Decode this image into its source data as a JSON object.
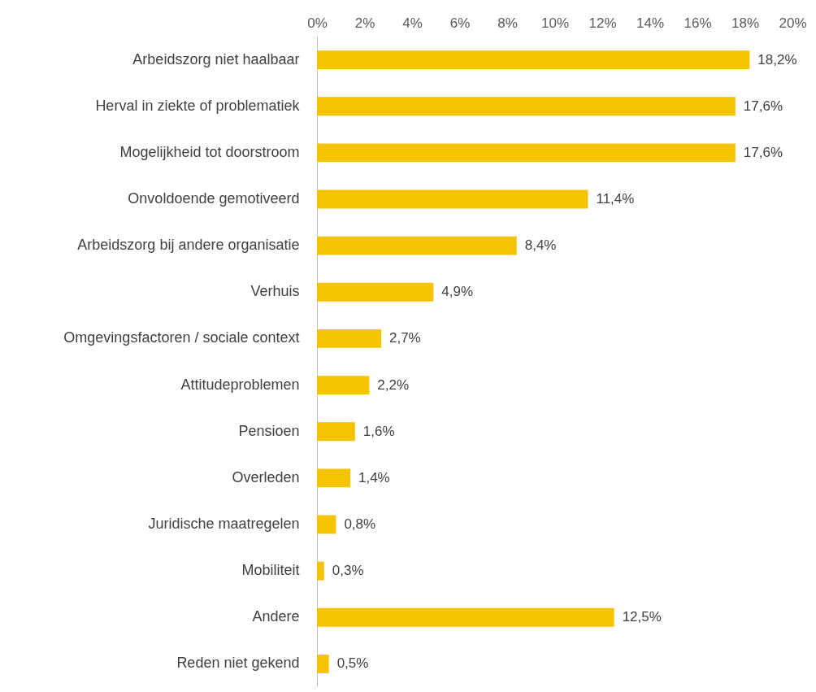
{
  "chart_data": {
    "type": "bar",
    "orientation": "horizontal",
    "categories": [
      "Arbeidszorg niet haalbaar",
      "Herval in ziekte of problematiek",
      "Mogelijkheid tot doorstroom",
      "Onvoldoende gemotiveerd",
      "Arbeidszorg bij andere organisatie",
      "Verhuis",
      "Omgevingsfactoren / sociale context",
      "Attitudeproblemen",
      "Pensioen",
      "Overleden",
      "Juridische maatregelen",
      "Mobiliteit",
      "Andere",
      "Reden niet gekend"
    ],
    "values": [
      18.2,
      17.6,
      17.6,
      11.4,
      8.4,
      4.9,
      2.7,
      2.2,
      1.6,
      1.4,
      0.8,
      0.3,
      12.5,
      0.5
    ],
    "value_labels": [
      "18,2%",
      "17,6%",
      "17,6%",
      "11,4%",
      "8,4%",
      "4,9%",
      "2,7%",
      "2,2%",
      "1,6%",
      "1,4%",
      "0,8%",
      "0,3%",
      "12,5%",
      "0,5%"
    ],
    "color": "#f5c300",
    "xlim": [
      0,
      20
    ],
    "xticks": [
      {
        "value": 0,
        "label": "0%"
      },
      {
        "value": 2,
        "label": "2%"
      },
      {
        "value": 4,
        "label": "4%"
      },
      {
        "value": 6,
        "label": "6%"
      },
      {
        "value": 8,
        "label": "8%"
      },
      {
        "value": 10,
        "label": "10%"
      },
      {
        "value": 12,
        "label": "12%"
      },
      {
        "value": 14,
        "label": "14%"
      },
      {
        "value": 16,
        "label": "16%"
      },
      {
        "value": 18,
        "label": "18%"
      },
      {
        "value": 20,
        "label": "20%"
      }
    ]
  }
}
